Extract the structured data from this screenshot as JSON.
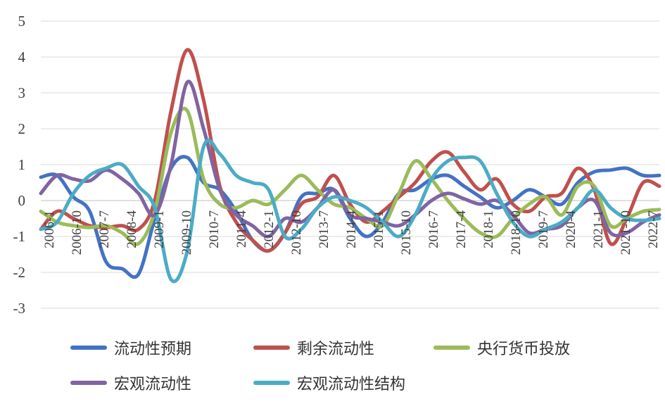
{
  "chart_data": {
    "type": "line",
    "title": "",
    "xlabel": "",
    "ylabel": "",
    "ylim": [
      -3,
      5
    ],
    "yticks": [
      5,
      4,
      3,
      2,
      1,
      0,
      -1,
      -2,
      -3
    ],
    "grid": true,
    "legend_position": "bottom",
    "x_ticks": [
      "2006-1",
      "2006-10",
      "2007-7",
      "2008-4",
      "2009-1",
      "2009-10",
      "2010-7",
      "2011-4",
      "2012-1",
      "2012-10",
      "2013-7",
      "2014-4",
      "2015-1",
      "2015-10",
      "2016-7",
      "2017-4",
      "2018-1",
      "2018-10",
      "2019-7",
      "2020-4",
      "2021-1",
      "2021-10",
      "2022-7"
    ],
    "series": [
      {
        "name": "流动性预期",
        "color": "#4472C4",
        "values": [
          0.65,
          0.7,
          0.1,
          -0.3,
          -1.7,
          -1.9,
          -2.05,
          -0.5,
          0.9,
          1.2,
          0.5,
          0.3,
          -0.3,
          -1.1,
          -1.4,
          -0.9,
          0.1,
          0.2,
          0.3,
          -0.5,
          -1.0,
          -0.6,
          0.2,
          0.3,
          0.6,
          0.7,
          0.4,
          0.1,
          -0.2,
          0.0,
          0.3,
          0.1,
          -0.1,
          0.5,
          0.8,
          0.85,
          0.9,
          0.7,
          0.7
        ]
      },
      {
        "name": "剩余流动性",
        "color": "#C0504D",
        "values": [
          -0.8,
          -0.3,
          -0.5,
          -0.7,
          -0.75,
          -0.7,
          -0.8,
          0.0,
          2.5,
          4.2,
          2.8,
          0.4,
          -0.6,
          -1.1,
          -1.4,
          -0.9,
          -0.1,
          0.1,
          0.7,
          -0.1,
          -0.6,
          -0.3,
          0.1,
          0.5,
          1.1,
          1.35,
          0.8,
          0.3,
          0.6,
          -0.1,
          -0.3,
          0.1,
          0.2,
          0.9,
          0.3,
          -1.2,
          -0.5,
          0.5,
          0.4
        ]
      },
      {
        "name": "央行货币投放",
        "color": "#9BBB59",
        "values": [
          -0.3,
          -0.6,
          -0.7,
          -0.75,
          -0.7,
          -0.9,
          -1.2,
          -0.3,
          1.9,
          2.5,
          0.6,
          -0.1,
          -0.2,
          0.0,
          -0.1,
          0.3,
          0.7,
          0.3,
          -0.1,
          -0.2,
          -0.5,
          -0.7,
          0.2,
          1.1,
          0.6,
          0.0,
          -0.5,
          -0.9,
          -1.0,
          -0.5,
          -0.1,
          0.1,
          -0.4,
          0.4,
          0.4,
          -0.7,
          -0.5,
          -0.3,
          -0.25
        ]
      },
      {
        "name": "宏观流动性",
        "color": "#8064A2",
        "values": [
          0.2,
          0.7,
          0.6,
          0.55,
          0.85,
          0.6,
          0.2,
          -0.4,
          1.0,
          3.3,
          2.0,
          0.3,
          -0.4,
          -0.7,
          -1.0,
          -0.5,
          -0.6,
          -0.2,
          0.3,
          -0.4,
          -0.5,
          -0.6,
          -0.7,
          -0.4,
          0.0,
          0.2,
          0.05,
          -0.1,
          0.0,
          -0.4,
          -0.9,
          -0.8,
          -0.7,
          -0.2,
          0.0,
          -0.9,
          -0.9,
          -0.6,
          -0.4
        ]
      },
      {
        "name": "宏观流动性结构",
        "color": "#4BACC6",
        "values": [
          -0.8,
          -0.6,
          0.2,
          0.7,
          0.9,
          1.0,
          0.4,
          -0.2,
          -2.2,
          -1.4,
          1.5,
          1.3,
          0.7,
          0.5,
          0.3,
          -1.0,
          -0.8,
          -0.2,
          0.1,
          0.0,
          -0.2,
          -0.6,
          -1.0,
          -0.4,
          0.6,
          1.1,
          1.2,
          1.1,
          0.2,
          -0.6,
          -1.0,
          -0.8,
          -0.6,
          -0.2,
          0.3,
          -0.2,
          -0.5,
          -0.55,
          -0.5
        ]
      }
    ]
  }
}
